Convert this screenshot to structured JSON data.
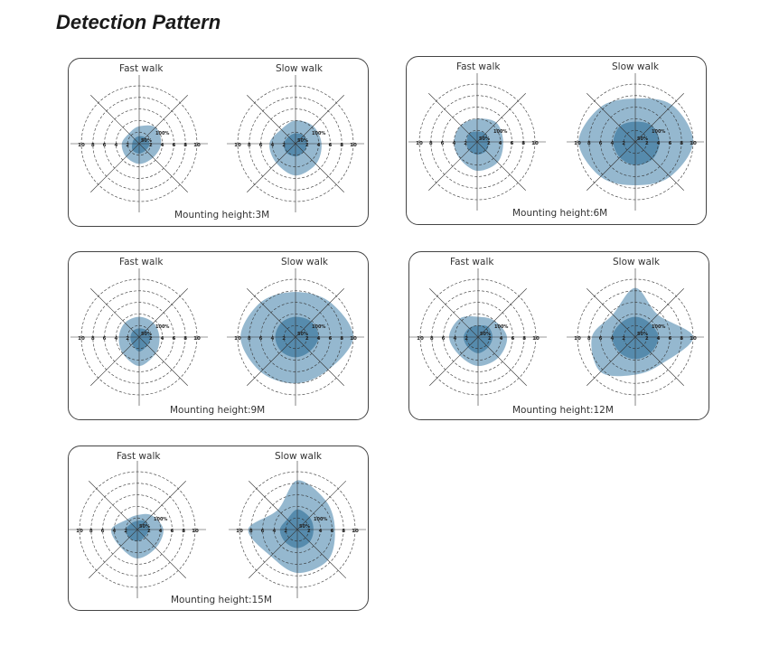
{
  "title": "Detection Pattern",
  "fast_label": "Fast walk",
  "slow_label": "Slow walk",
  "ticks": [
    "10",
    "8",
    "6",
    "4",
    "2",
    "2",
    "4",
    "6",
    "8",
    "10"
  ],
  "pct_outer": "100%",
  "pct_inner": "50%",
  "colors": {
    "outer": "#8fb4cc",
    "inner": "#4f86a8",
    "grid": "#333333"
  },
  "panels": [
    {
      "mount": "Mounting height:3M",
      "fast": {
        "outer": [
          3.8,
          4.0,
          3.0,
          2.5,
          3.0,
          3.2,
          3.5,
          3.4
        ],
        "inner": [
          1.8,
          1.5,
          1.3,
          1.2,
          1.2,
          1.6,
          1.7,
          1.6
        ]
      },
      "slow": {
        "outer": [
          4.5,
          4.3,
          4.0,
          3.5,
          4.5,
          4.7,
          5.5,
          5.0
        ],
        "inner": [
          2.0,
          2.0,
          1.8,
          1.7,
          2.0,
          2.2,
          2.2,
          2.0
        ]
      }
    },
    {
      "mount": "Mounting height:6M",
      "fast": {
        "outer": [
          4.5,
          4.7,
          4.0,
          4.0,
          4.0,
          4.2,
          5.0,
          5.0
        ],
        "inner": [
          2.0,
          2.0,
          1.8,
          2.0,
          1.8,
          2.0,
          2.2,
          2.2
        ]
      },
      "slow": {
        "outer": [
          10,
          9.0,
          7.5,
          8.5,
          9.8,
          8.5,
          7.5,
          8.5
        ],
        "inner": [
          4.2,
          4.0,
          3.5,
          3.8,
          3.8,
          3.8,
          4.0,
          4.2
        ]
      }
    },
    {
      "mount": "Mounting height:9M",
      "fast": {
        "outer": [
          3.5,
          3.5,
          3.5,
          3.5,
          3.5,
          4.0,
          5.0,
          4.0
        ],
        "inner": [
          2.0,
          1.7,
          1.5,
          1.5,
          1.5,
          1.7,
          2.5,
          2.0
        ]
      },
      "slow": {
        "outer": [
          10,
          8.5,
          7.8,
          8.5,
          9.5,
          8.5,
          8.0,
          8.0
        ],
        "inner": [
          4.0,
          3.8,
          3.5,
          3.5,
          3.5,
          3.5,
          3.5,
          3.5
        ]
      }
    },
    {
      "mount": "Mounting height:12M",
      "fast": {
        "outer": [
          5.0,
          4.0,
          3.5,
          4.5,
          5.0,
          4.5,
          5.0,
          5.0
        ],
        "inner": [
          2.5,
          2.5,
          2.0,
          2.2,
          2.5,
          2.5,
          2.8,
          2.5
        ]
      },
      "slow": {
        "outer": [
          10,
          5.5,
          8.5,
          5.5,
          7.5,
          8.5,
          6.5,
          6.5
        ],
        "inner": [
          4.0,
          3.5,
          3.5,
          3.5,
          4.0,
          3.8,
          3.8,
          3.8
        ]
      }
    },
    {
      "mount": "Mounting height:15M",
      "fast": {
        "outer": [
          4.5,
          3.5,
          2.5,
          2.5,
          4.5,
          4.2,
          5.0,
          4.5
        ],
        "inner": [
          2.0,
          2.0,
          1.5,
          1.5,
          2.0,
          2.0,
          2.0,
          1.8
        ]
      },
      "slow": {
        "outer": [
          6.5,
          7.0,
          8.5,
          4.8,
          8.5,
          6.5,
          7.5,
          7.5
        ],
        "inner": [
          2.8,
          3.0,
          3.5,
          2.5,
          3.0,
          3.0,
          3.2,
          3.0
        ]
      }
    }
  ]
}
